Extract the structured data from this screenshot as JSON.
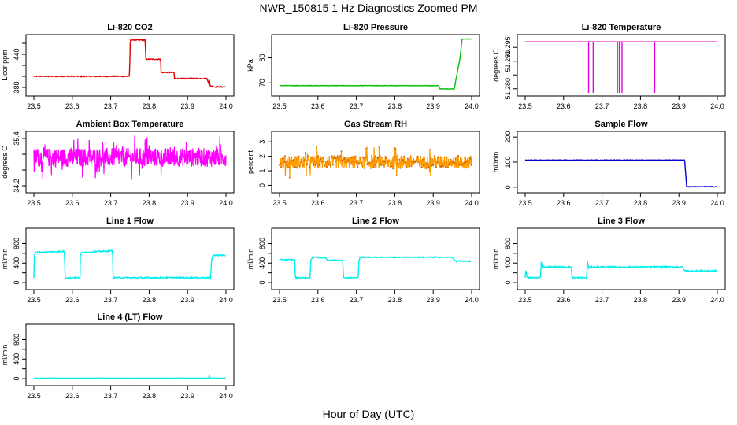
{
  "title": "NWR_150815  1 Hz Diagnostics Zoomed PM",
  "x_axis_label": "Hour of Day (UTC)",
  "chart_data": [
    {
      "type": "line",
      "title": "Li-820 CO2",
      "xlabel": "",
      "ylabel": "Licor ppm",
      "color": "#e00000",
      "xlim": [
        23.5,
        24.0
      ],
      "ylim": [
        370,
        470
      ],
      "xticks": [
        23.5,
        23.6,
        23.7,
        23.8,
        23.9,
        24.0
      ],
      "xtick_labels": [
        "23.5",
        "23.6",
        "23.7",
        "23.8",
        "23.9",
        "24.0"
      ],
      "yticks": [
        380,
        400,
        420,
        440,
        460
      ],
      "ytick_labels": [
        "380",
        "",
        "",
        "440",
        ""
      ],
      "grid": false,
      "noise": 0.8,
      "series": [
        {
          "x": [
            23.5,
            23.749,
            23.751,
            23.79,
            23.791,
            23.83,
            23.831,
            23.865,
            23.866,
            23.95,
            23.955,
            23.957,
            23.958,
            23.97,
            24.0
          ],
          "y": [
            400,
            400,
            466,
            466,
            431,
            431,
            407,
            407,
            396,
            396,
            388,
            396,
            383,
            381,
            381
          ]
        }
      ]
    },
    {
      "type": "line",
      "title": "Li-820 Pressure",
      "xlabel": "",
      "ylabel": "kPa",
      "color": "#00c000",
      "xlim": [
        23.5,
        24.0
      ],
      "ylim": [
        66,
        88
      ],
      "xticks": [
        23.5,
        23.6,
        23.7,
        23.8,
        23.9,
        24.0
      ],
      "xtick_labels": [
        "23.5",
        "23.6",
        "23.7",
        "23.8",
        "23.9",
        "24.0"
      ],
      "yticks": [
        70,
        80
      ],
      "ytick_labels": [
        "70",
        "80"
      ],
      "grid": false,
      "noise": 0.08,
      "series": [
        {
          "x": [
            23.5,
            23.915,
            23.917,
            23.955,
            23.96,
            23.97,
            23.975,
            24.0
          ],
          "y": [
            68.9,
            68.9,
            67.6,
            67.6,
            72,
            80,
            87.5,
            87.5
          ]
        }
      ]
    },
    {
      "type": "line",
      "title": "Li-820 Temperature",
      "xlabel": "",
      "ylabel": "degrees C",
      "color": "#e000e0",
      "xlim": [
        23.5,
        24.0
      ],
      "ylim": [
        51.2785,
        51.2985
      ],
      "xticks": [
        23.5,
        23.6,
        23.7,
        23.8,
        23.9,
        24.0
      ],
      "xtick_labels": [
        "23.5",
        "23.6",
        "23.7",
        "23.8",
        "23.9",
        "24.0"
      ],
      "yticks": [
        51.28,
        51.285,
        51.29,
        51.295
      ],
      "ytick_labels": [
        "51.280",
        "",
        "51.290",
        "51.295"
      ],
      "grid": false,
      "noise": 0,
      "baseline": 51.297,
      "drop_to": 51.2785,
      "spikes": [
        23.665,
        23.677,
        23.74,
        23.745,
        23.752,
        23.837
      ]
    },
    {
      "type": "line",
      "title": "Ambient Box Temperature",
      "xlabel": "",
      "ylabel": "degrees C",
      "color": "#ff00ff",
      "xlim": [
        23.5,
        24.0
      ],
      "ylim": [
        34.1,
        35.5
      ],
      "xticks": [
        23.5,
        23.6,
        23.7,
        23.8,
        23.9,
        24.0
      ],
      "xtick_labels": [
        "23.5",
        "23.6",
        "23.7",
        "23.8",
        "23.9",
        "24.0"
      ],
      "yticks": [
        34.2,
        34.6,
        35.0,
        35.4
      ],
      "ytick_labels": [
        "34.2",
        "",
        "",
        "35.4"
      ],
      "grid": false,
      "noise": 0.24,
      "noise_dense": true,
      "series": [
        {
          "x": [
            23.5,
            24.0
          ],
          "y": [
            34.92,
            34.92
          ]
        }
      ]
    },
    {
      "type": "scatter",
      "title": "Gas Stream RH",
      "xlabel": "",
      "ylabel": "percent",
      "color": "#ff9900",
      "xlim": [
        23.5,
        24.0
      ],
      "ylim": [
        -0.3,
        3.5
      ],
      "xticks": [
        23.5,
        23.6,
        23.7,
        23.8,
        23.9,
        24.0
      ],
      "xtick_labels": [
        "23.5",
        "23.6",
        "23.7",
        "23.8",
        "23.9",
        "24.0"
      ],
      "yticks": [
        0,
        1,
        2,
        3
      ],
      "ytick_labels": [
        "0",
        "1",
        "2",
        "3"
      ],
      "grid": false,
      "noise": 0.45,
      "noise_dense": true,
      "series": [
        {
          "x": [
            23.5,
            24.0
          ],
          "y": [
            1.6,
            1.6
          ]
        }
      ]
    },
    {
      "type": "line",
      "title": "Sample Flow",
      "xlabel": "",
      "ylabel": "ml/min",
      "color": "#0000cc",
      "xlim": [
        23.5,
        24.0
      ],
      "ylim": [
        -10,
        210
      ],
      "xticks": [
        23.5,
        23.6,
        23.7,
        23.8,
        23.9,
        24.0
      ],
      "xtick_labels": [
        "23.5",
        "23.6",
        "23.7",
        "23.8",
        "23.9",
        "24.0"
      ],
      "yticks": [
        0,
        100,
        200
      ],
      "ytick_labels": [
        "0",
        "100",
        "200"
      ],
      "grid": false,
      "noise": 1.2,
      "series": [
        {
          "x": [
            23.5,
            23.915,
            23.92,
            23.925,
            24.0
          ],
          "y": [
            108,
            108,
            5,
            2,
            2
          ]
        }
      ]
    },
    {
      "type": "line",
      "title": "Line 1 Flow",
      "xlabel": "",
      "ylabel": "ml/min",
      "color": "#00eeee",
      "xlim": [
        23.5,
        24.0
      ],
      "ylim": [
        -80,
        1050
      ],
      "xticks": [
        23.5,
        23.6,
        23.7,
        23.8,
        23.9,
        24.0
      ],
      "xtick_labels": [
        "23.5",
        "23.6",
        "23.7",
        "23.8",
        "23.9",
        "24.0"
      ],
      "yticks": [
        0,
        200,
        400,
        600,
        800
      ],
      "ytick_labels": [
        "0",
        "",
        "400",
        "",
        "800"
      ],
      "grid": false,
      "noise": 12,
      "series": [
        {
          "x": [
            23.5,
            23.501,
            23.505,
            23.58,
            23.581,
            23.62,
            23.621,
            23.625,
            23.705,
            23.706,
            23.96,
            23.962,
            23.965,
            24.0
          ],
          "y": [
            100,
            550,
            620,
            640,
            100,
            100,
            550,
            620,
            650,
            100,
            100,
            400,
            560,
            560
          ]
        }
      ]
    },
    {
      "type": "line",
      "title": "Line 2 Flow",
      "xlabel": "",
      "ylabel": "ml/min",
      "color": "#00eeee",
      "xlim": [
        23.5,
        24.0
      ],
      "ylim": [
        -80,
        1050
      ],
      "xticks": [
        23.5,
        23.6,
        23.7,
        23.8,
        23.9,
        24.0
      ],
      "xtick_labels": [
        "23.5",
        "23.6",
        "23.7",
        "23.8",
        "23.9",
        "24.0"
      ],
      "yticks": [
        0,
        200,
        400,
        600,
        800
      ],
      "ytick_labels": [
        "0",
        "",
        "400",
        "",
        "800"
      ],
      "grid": false,
      "noise": 10,
      "series": [
        {
          "x": [
            23.5,
            23.54,
            23.541,
            23.58,
            23.581,
            23.585,
            23.62,
            23.625,
            23.665,
            23.666,
            23.705,
            23.706,
            23.71,
            23.95,
            23.958,
            24.0
          ],
          "y": [
            470,
            470,
            100,
            100,
            440,
            520,
            510,
            460,
            460,
            100,
            100,
            440,
            520,
            520,
            440,
            440
          ]
        }
      ]
    },
    {
      "type": "line",
      "title": "Line 3 Flow",
      "xlabel": "",
      "ylabel": "ml/min",
      "color": "#00eeee",
      "xlim": [
        23.5,
        24.0
      ],
      "ylim": [
        -80,
        1050
      ],
      "xticks": [
        23.5,
        23.6,
        23.7,
        23.8,
        23.9,
        24.0
      ],
      "xtick_labels": [
        "23.5",
        "23.6",
        "23.7",
        "23.8",
        "23.9",
        "24.0"
      ],
      "yticks": [
        0,
        200,
        400,
        600,
        800
      ],
      "ytick_labels": [
        "0",
        "",
        "400",
        "",
        "800"
      ],
      "grid": false,
      "noise": 14,
      "series": [
        {
          "x": [
            23.5,
            23.502,
            23.505,
            23.54,
            23.542,
            23.545,
            23.547,
            23.62,
            23.622,
            23.66,
            23.662,
            23.665,
            23.667,
            23.91,
            23.915,
            24.0
          ],
          "y": [
            100,
            280,
            100,
            100,
            440,
            300,
            320,
            320,
            100,
            100,
            440,
            300,
            320,
            320,
            240,
            240
          ]
        }
      ]
    },
    {
      "type": "line",
      "title": "Line 4 (LT) Flow",
      "xlabel": "",
      "ylabel": "ml/min",
      "color": "#00eeee",
      "xlim": [
        23.5,
        24.0
      ],
      "ylim": [
        -80,
        1050
      ],
      "xticks": [
        23.5,
        23.6,
        23.7,
        23.8,
        23.9,
        24.0
      ],
      "xtick_labels": [
        "23.5",
        "23.6",
        "23.7",
        "23.8",
        "23.9",
        "24.0"
      ],
      "yticks": [
        0,
        200,
        400,
        600,
        800
      ],
      "ytick_labels": [
        "0",
        "",
        "400",
        "",
        "800"
      ],
      "grid": false,
      "noise": 2,
      "series": [
        {
          "x": [
            23.5,
            23.955,
            23.957,
            23.959,
            24.0
          ],
          "y": [
            10,
            10,
            60,
            10,
            10
          ]
        }
      ]
    }
  ]
}
